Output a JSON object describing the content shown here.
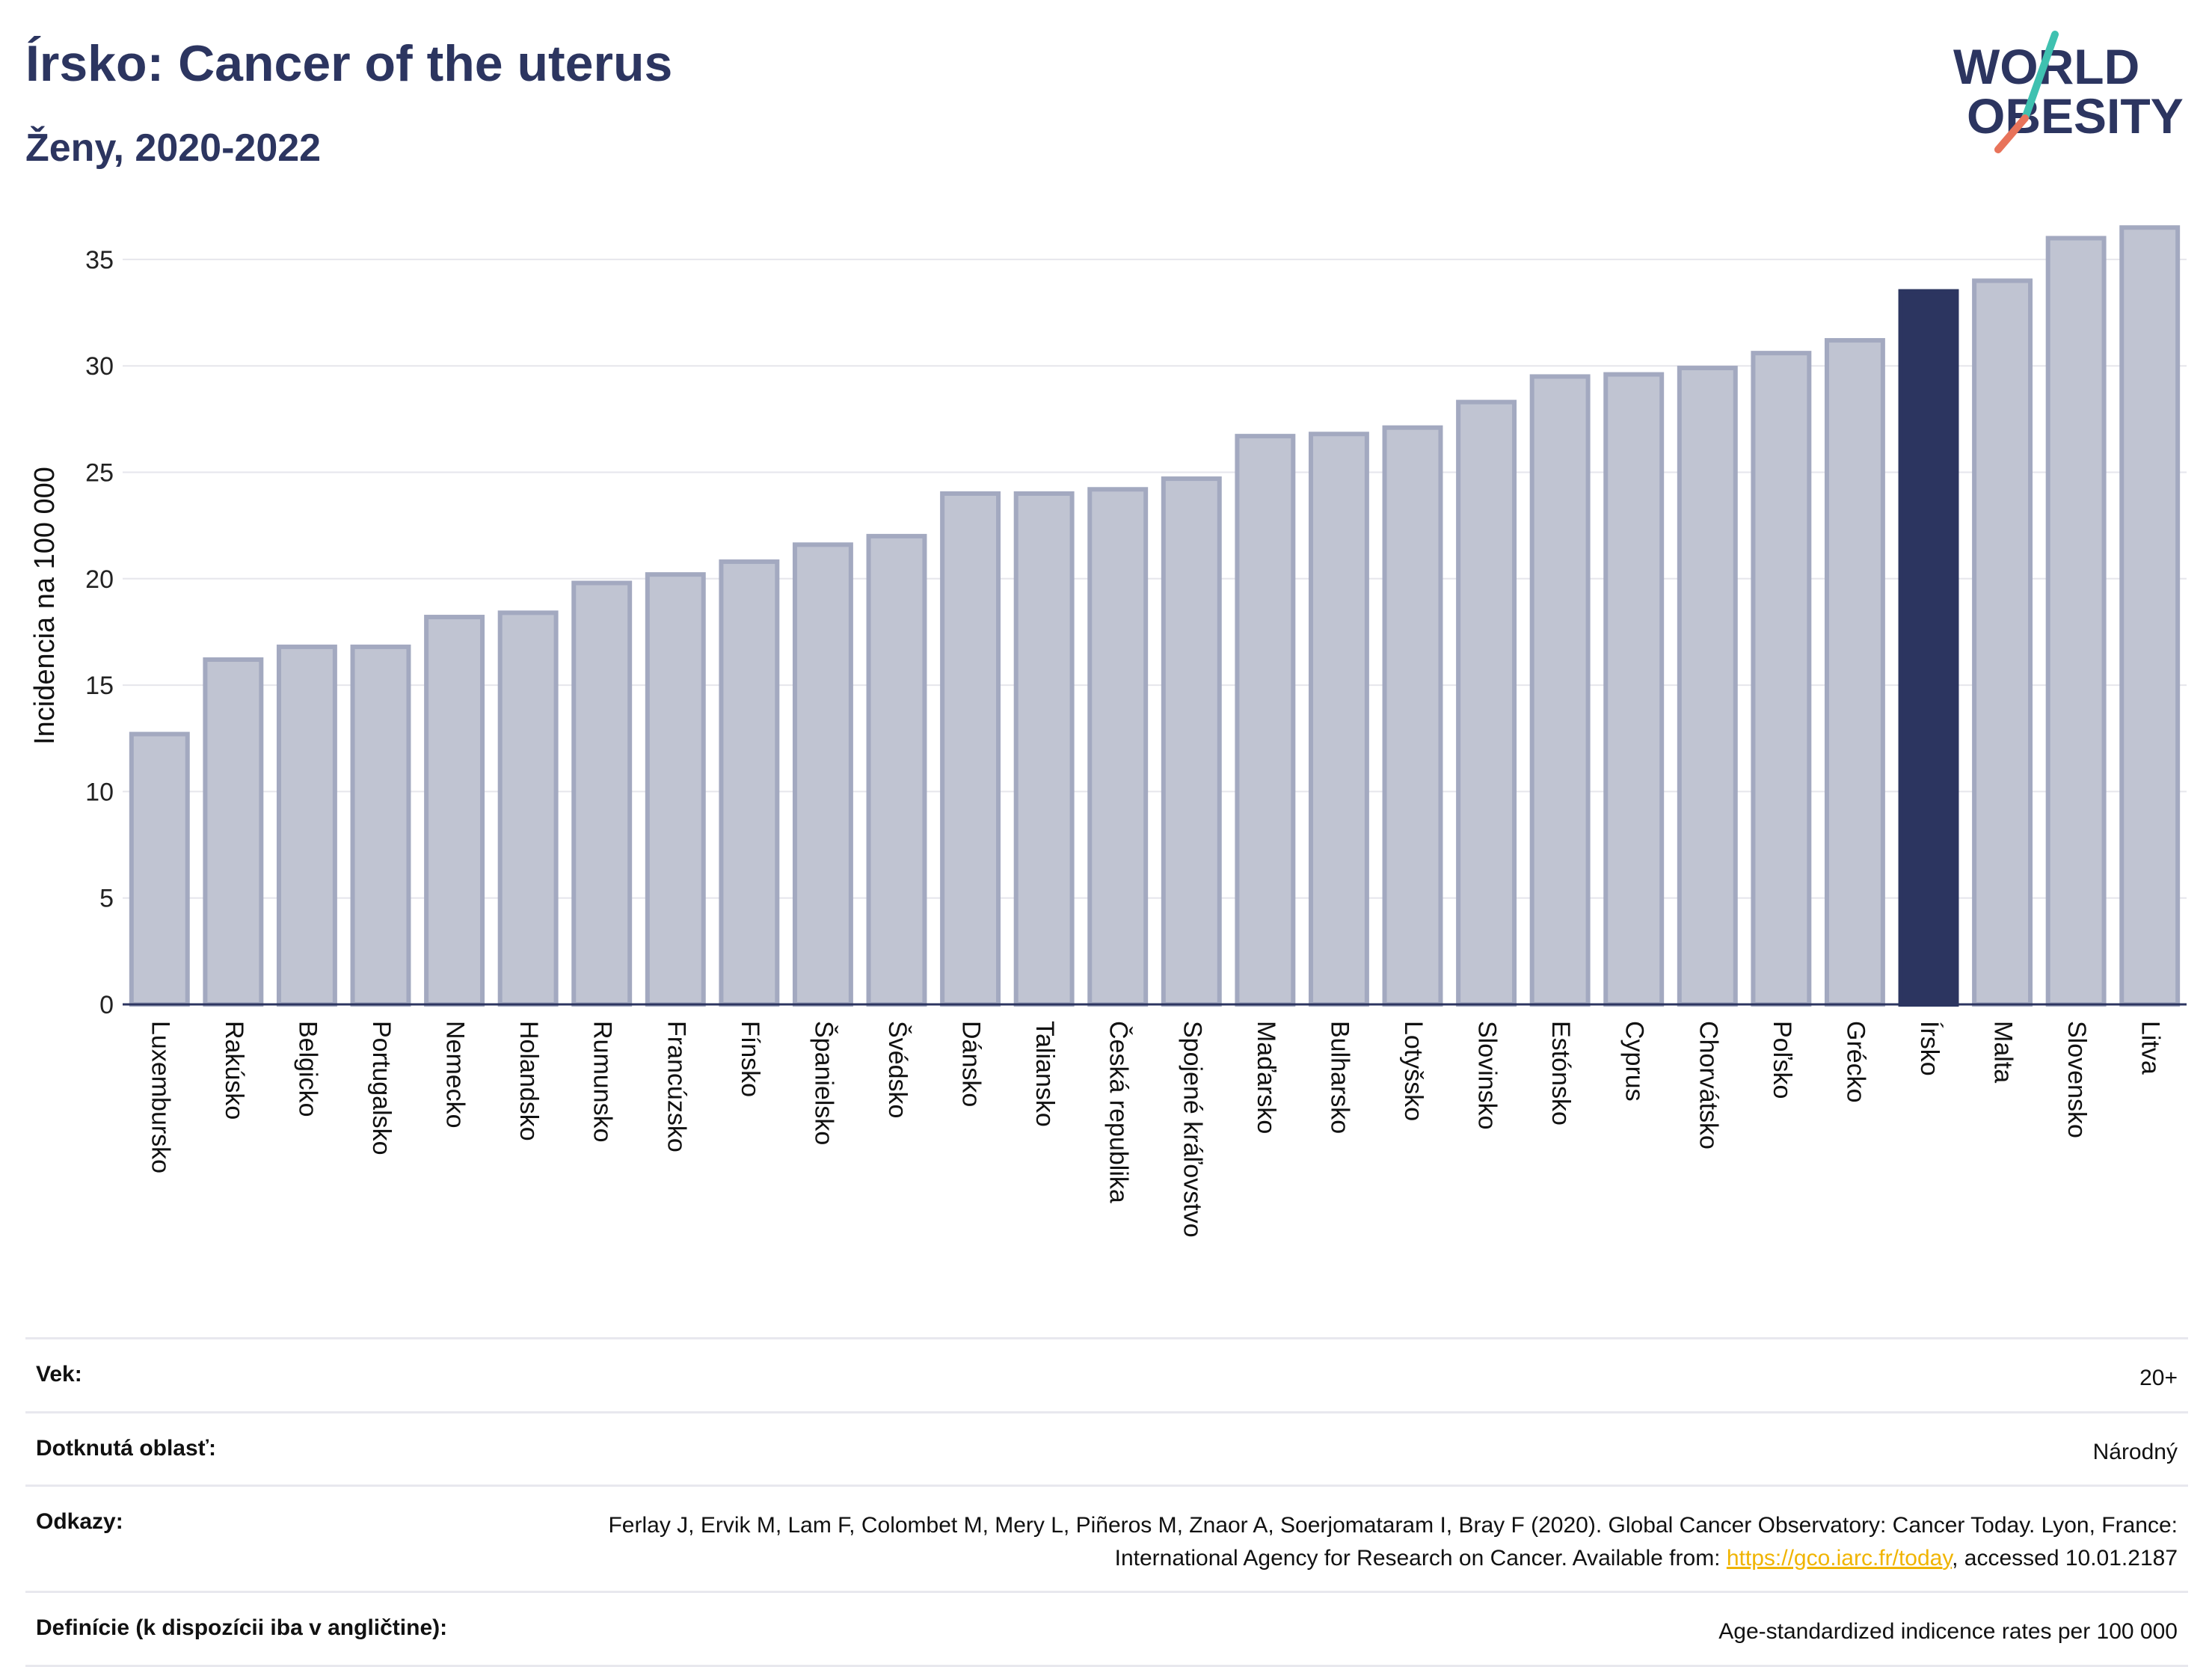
{
  "header": {
    "title": "Írsko: Cancer of the uterus",
    "subtitle": "Ženy, 2020-2022"
  },
  "logo": {
    "line1": "WORLD",
    "line2": "OBESITY",
    "primary_color": "#2c3560",
    "slash_colors": [
      "#3fc1b0",
      "#e8735a"
    ]
  },
  "chart_data": {
    "type": "bar",
    "ylabel": "Incidencia na 100 000",
    "xlabel": "",
    "ylim": [
      0,
      37
    ],
    "yticks": [
      0,
      5,
      10,
      15,
      20,
      25,
      30,
      35
    ],
    "grid": true,
    "categories": [
      "Luxembursko",
      "Rakúsko",
      "Belgicko",
      "Portugalsko",
      "Nemecko",
      "Holandsko",
      "Rumunsko",
      "Francúzsko",
      "Fínsko",
      "Španielsko",
      "Švédsko",
      "Dánsko",
      "Taliansko",
      "Česká republika",
      "Spojené kráľovstvo",
      "Maďarsko",
      "Bulharsko",
      "Lotyšsko",
      "Slovinsko",
      "Estónsko",
      "Cyprus",
      "Chorvátsko",
      "Poľsko",
      "Grécko",
      "Írsko",
      "Malta",
      "Slovensko",
      "Litva"
    ],
    "values": [
      12.7,
      16.2,
      16.8,
      16.8,
      18.2,
      18.4,
      19.8,
      20.2,
      20.8,
      21.6,
      22.0,
      24.0,
      24.0,
      24.2,
      24.7,
      26.7,
      26.8,
      27.1,
      28.3,
      29.5,
      29.6,
      29.9,
      30.6,
      31.2,
      33.5,
      34.0,
      36.0,
      36.5
    ],
    "highlight": "Írsko",
    "colors": {
      "default_fill": "#c0c4d2",
      "default_stroke": "#a3a9c0",
      "highlight_fill": "#2c3560",
      "grid": "#e6e6ec",
      "axis": "#2c3560"
    }
  },
  "info": {
    "age_label": "Vek:",
    "age_value": "20+",
    "area_label": "Dotknutá oblasť:",
    "area_value": "Národný",
    "refs_label": "Odkazy:",
    "refs_text_1": "Ferlay J, Ervik M, Lam F, Colombet M, Mery L, Piñeros M, Znaor A, Soerjomataram I, Bray F (2020). Global Cancer Observatory: Cancer Today. Lyon, France: International Agency for Research on Cancer. Available from: ",
    "refs_link": "https://gco.iarc.fr/today",
    "refs_text_2": ", accessed 10.01.2187",
    "def_label": "Definície (k dispozícii iba v angličtine):",
    "def_value": "Age-standardized indicence rates per 100 000"
  }
}
